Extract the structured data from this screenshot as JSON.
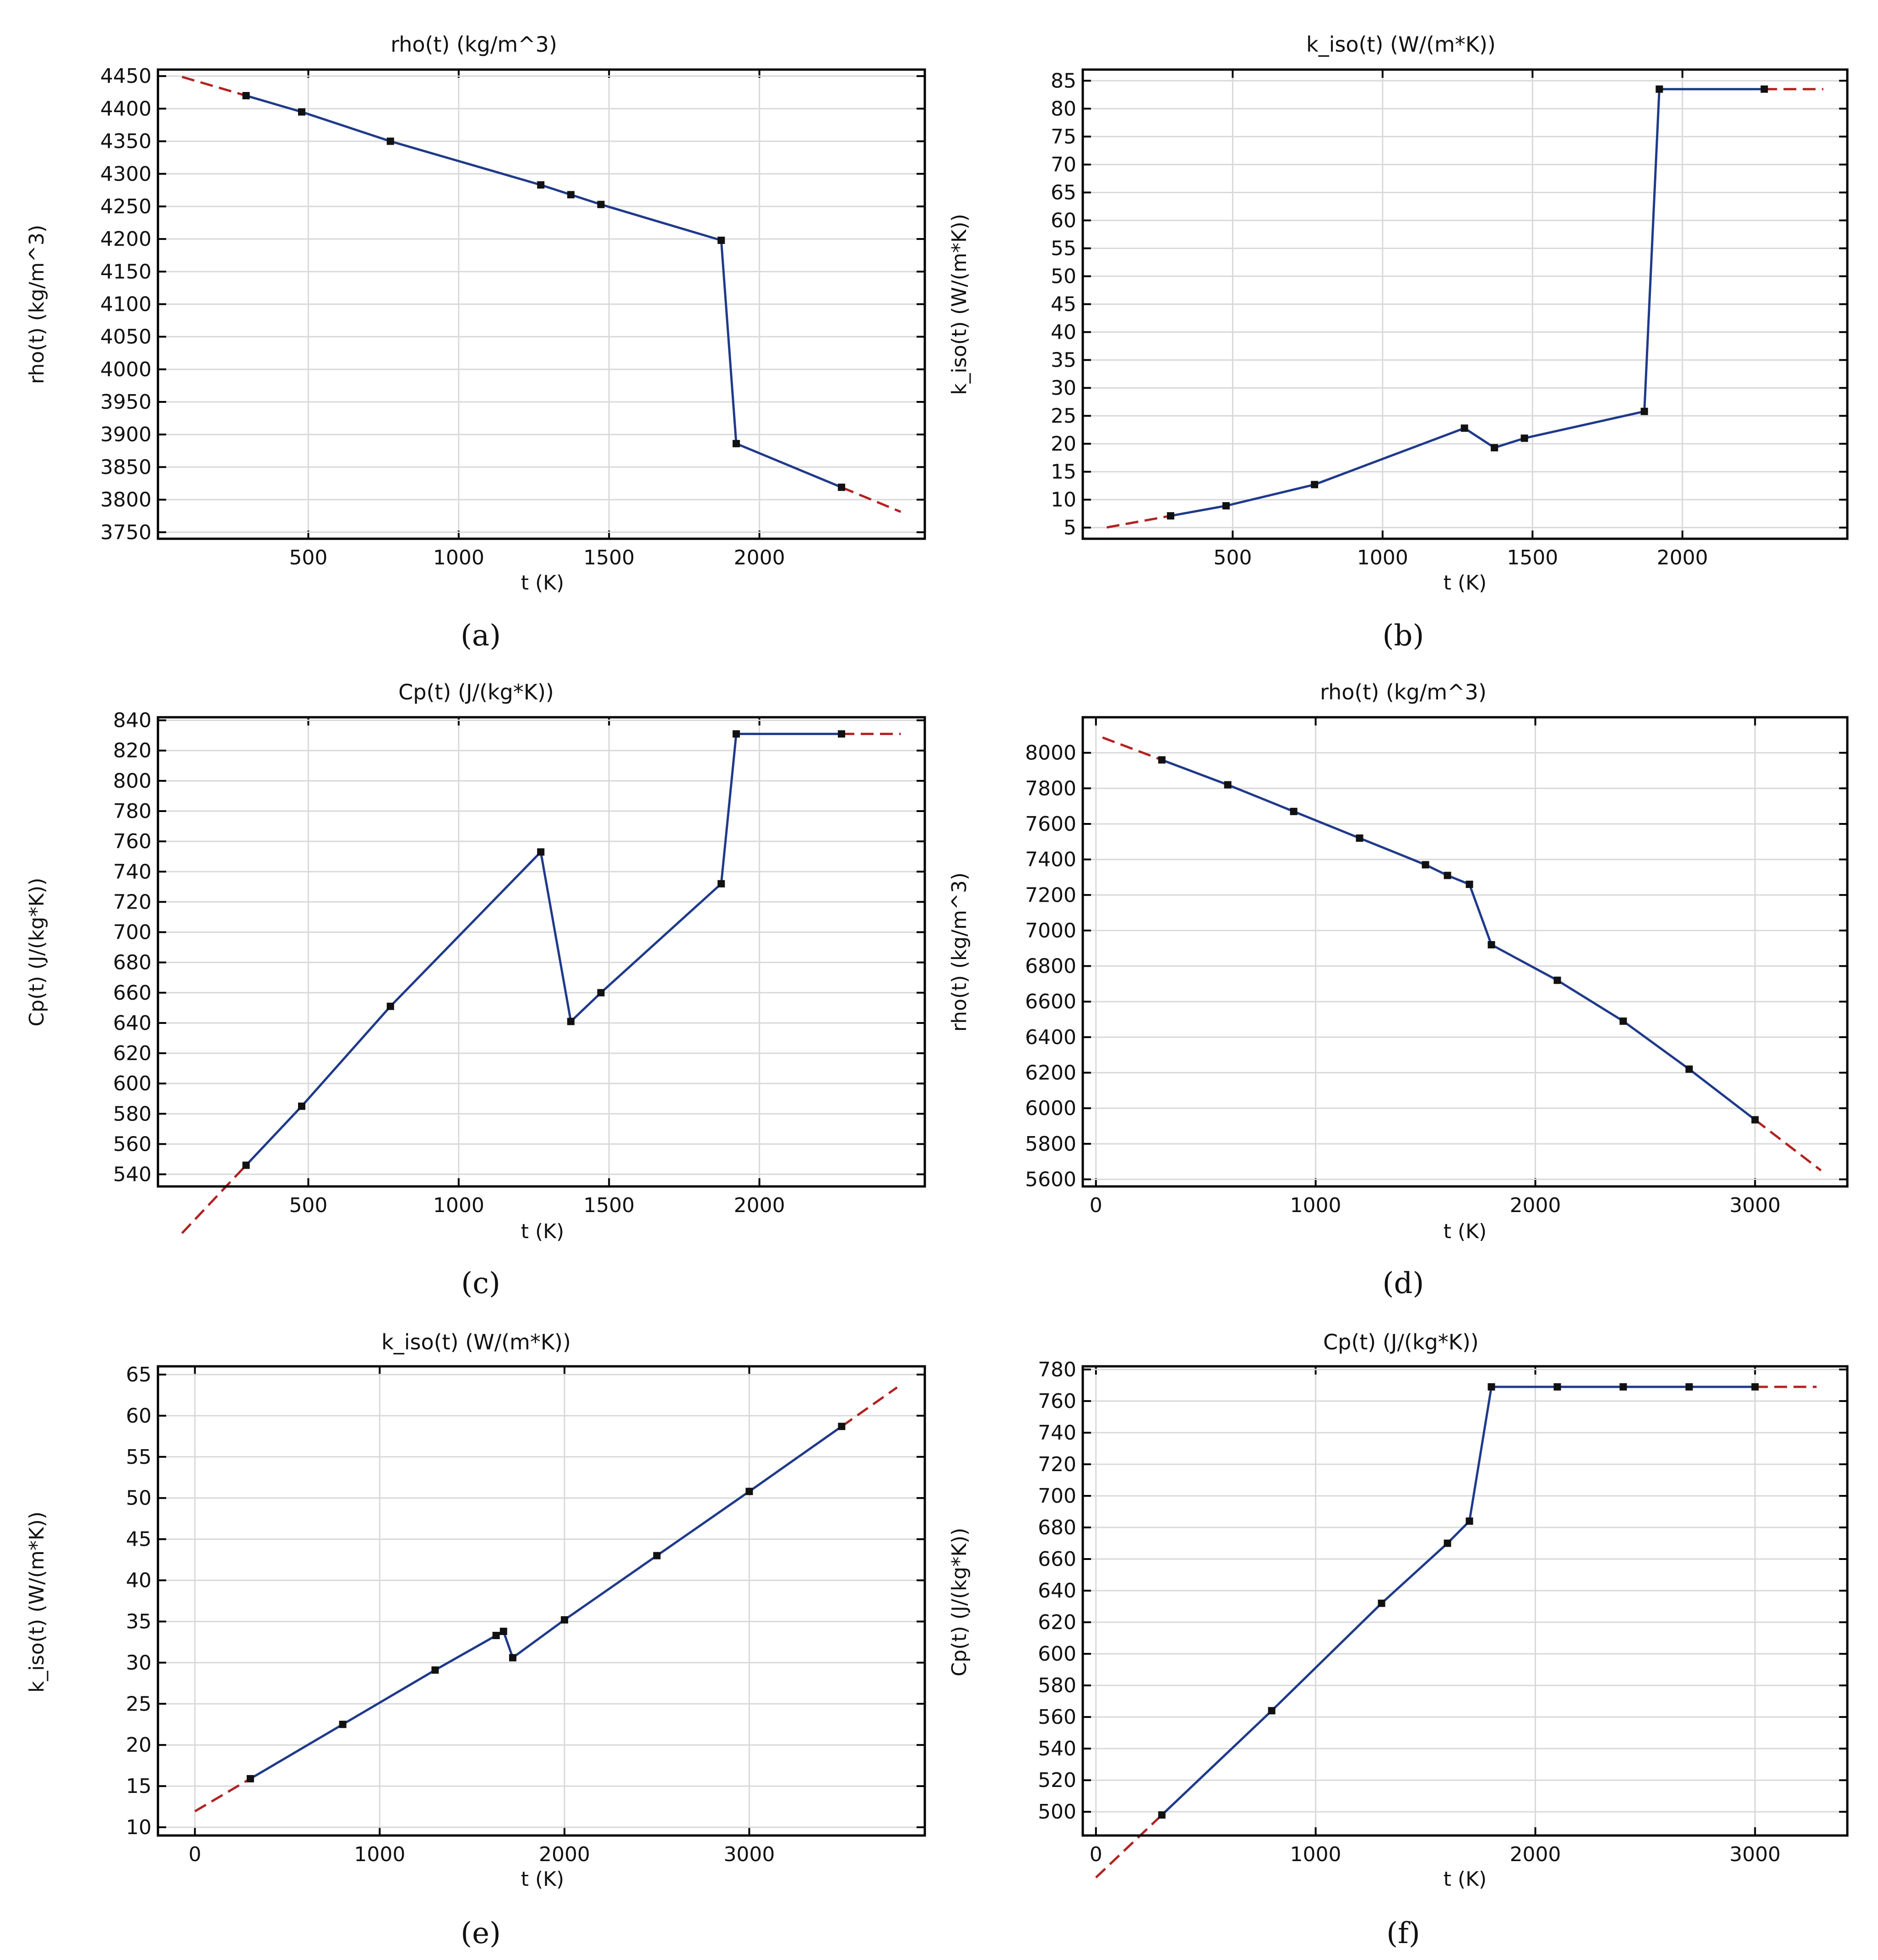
{
  "colors": {
    "line": "#1f3a8a",
    "extrapolation": "#b22222",
    "grid": "#d9d9d9",
    "point": "#111111",
    "frame": "#000000"
  },
  "chart_data": [
    {
      "id": "a",
      "panel_label": "(a)",
      "type": "line",
      "title": "rho(t) (kg/m^3)",
      "xlabel": "t (K)",
      "ylabel": "rho(t) (kg/m^3)",
      "xlim": [
        0,
        2550
      ],
      "ylim": [
        3740,
        4460
      ],
      "xticks": [
        500,
        1000,
        1500,
        2000
      ],
      "yticks": [
        3750,
        3800,
        3850,
        3900,
        3950,
        4000,
        4050,
        4100,
        4150,
        4200,
        4250,
        4300,
        4350,
        4400,
        4450
      ],
      "x": [
        293,
        478,
        773,
        1273,
        1373,
        1473,
        1873,
        1923,
        2273
      ],
      "y": [
        4420,
        4395,
        4350,
        4283,
        4268,
        4253,
        4198,
        3886,
        3819
      ],
      "extrapolation_x_range": [
        80,
        2470
      ]
    },
    {
      "id": "b",
      "panel_label": "(b)",
      "type": "line",
      "title": "k_iso(t) (W/(m*K))",
      "xlabel": "t (K)",
      "ylabel": "k_iso(t) (W/(m*K))",
      "xlim": [
        0,
        2550
      ],
      "ylim": [
        3,
        87
      ],
      "xticks": [
        500,
        1000,
        1500,
        2000
      ],
      "yticks": [
        5,
        10,
        15,
        20,
        25,
        30,
        35,
        40,
        45,
        50,
        55,
        60,
        65,
        70,
        75,
        80,
        85
      ],
      "x": [
        293,
        478,
        773,
        1273,
        1373,
        1473,
        1873,
        1923,
        2273
      ],
      "y": [
        7.1,
        8.9,
        12.7,
        22.8,
        19.3,
        21,
        25.8,
        83.5,
        83.5
      ],
      "extrapolation_x_range": [
        80,
        2470
      ]
    },
    {
      "id": "c",
      "panel_label": "(c)",
      "type": "line",
      "title": "Cp(t) (J/(kg*K))",
      "xlabel": "t (K)",
      "ylabel": "Cp(t) (J/(kg*K))",
      "xlim": [
        0,
        2550
      ],
      "ylim": [
        532,
        842
      ],
      "xticks": [
        500,
        1000,
        1500,
        2000
      ],
      "yticks": [
        540,
        560,
        580,
        600,
        620,
        640,
        660,
        680,
        700,
        720,
        740,
        760,
        780,
        800,
        820,
        840
      ],
      "x": [
        293,
        478,
        773,
        1273,
        1373,
        1473,
        1873,
        1923,
        2273
      ],
      "y": [
        546,
        585,
        651,
        753,
        641,
        660,
        732,
        831,
        831
      ],
      "extrapolation_x_range": [
        80,
        2470
      ]
    },
    {
      "id": "d",
      "panel_label": "(d)",
      "type": "line",
      "title": "rho(t) (kg/m^3)",
      "xlabel": "t (K)",
      "ylabel": "rho(t) (kg/m^3)",
      "xlim": [
        -60,
        3420
      ],
      "ylim": [
        5560,
        8200
      ],
      "xticks": [
        0,
        1000,
        2000,
        3000
      ],
      "yticks": [
        5600,
        5800,
        6000,
        6200,
        6400,
        6600,
        6800,
        7000,
        7200,
        7400,
        7600,
        7800,
        8000
      ],
      "x": [
        300,
        600,
        900,
        1200,
        1500,
        1600,
        1700,
        1800,
        2100,
        2400,
        2700,
        3000
      ],
      "y": [
        7960,
        7820,
        7670,
        7520,
        7370,
        7310,
        7260,
        6920,
        6720,
        6490,
        6220,
        5935
      ],
      "extrapolation_x_range": [
        30,
        3300
      ]
    },
    {
      "id": "e",
      "panel_label": "(e)",
      "type": "line",
      "title": "k_iso(t) (W/(m*K))",
      "xlabel": "t (K)",
      "ylabel": "k_iso(t) (W/(m*K))",
      "xlim": [
        -200,
        3950
      ],
      "ylim": [
        9,
        66
      ],
      "xticks": [
        0,
        1000,
        2000,
        3000
      ],
      "yticks": [
        10,
        15,
        20,
        25,
        30,
        35,
        40,
        45,
        50,
        55,
        60,
        65
      ],
      "x": [
        300,
        800,
        1300,
        1630,
        1670,
        1720,
        2000,
        2500,
        3000,
        3500
      ],
      "y": [
        15.9,
        22.5,
        29.1,
        33.3,
        33.8,
        30.6,
        35.2,
        43,
        50.8,
        58.7
      ],
      "extrapolation_x_range": [
        0,
        3800
      ]
    },
    {
      "id": "f",
      "panel_label": "(f)",
      "type": "line",
      "title": "Cp(t) (J/(kg*K))",
      "xlabel": "t (K)",
      "ylabel": "Cp(t) (J/(kg*K))",
      "xlim": [
        -60,
        3420
      ],
      "ylim": [
        485,
        782
      ],
      "xticks": [
        0,
        1000,
        2000,
        3000
      ],
      "yticks": [
        500,
        520,
        540,
        560,
        580,
        600,
        620,
        640,
        660,
        680,
        700,
        720,
        740,
        760,
        780
      ],
      "x": [
        300,
        800,
        1300,
        1600,
        1700,
        1800,
        2100,
        2400,
        2700,
        3000
      ],
      "y": [
        498,
        564,
        632,
        670,
        684,
        769,
        769,
        769,
        769,
        769
      ],
      "extrapolation_x_range": [
        0,
        3280
      ]
    }
  ]
}
